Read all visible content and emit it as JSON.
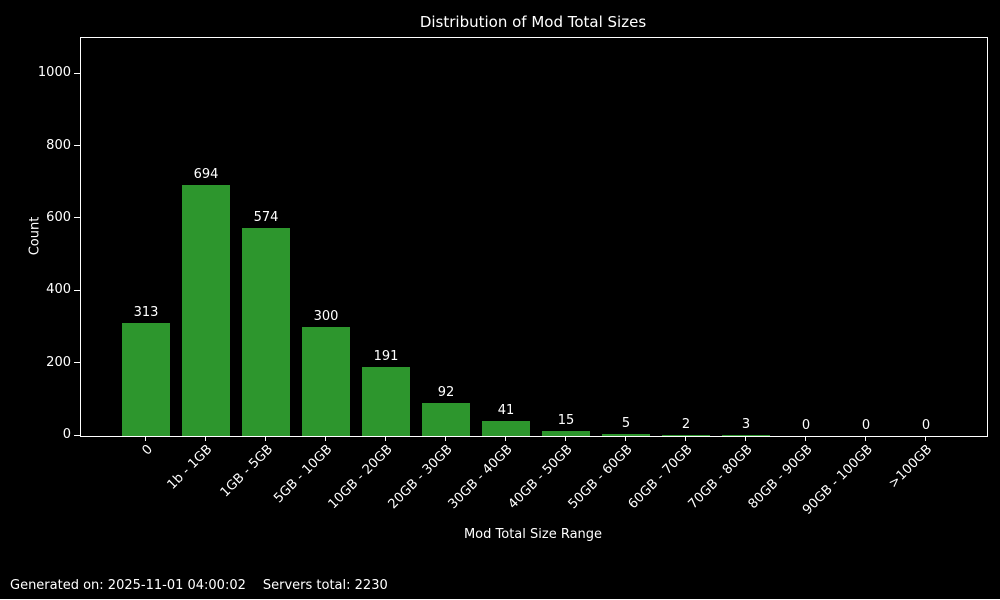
{
  "chart_data": {
    "type": "bar",
    "title": "Distribution of Mod Total Sizes",
    "xlabel": "Mod Total Size Range",
    "ylabel": "Count",
    "categories": [
      "0",
      "1b - 1GB",
      "1GB - 5GB",
      "5GB - 10GB",
      "10GB - 20GB",
      "20GB - 30GB",
      "30GB - 40GB",
      "40GB - 50GB",
      "50GB - 60GB",
      "60GB - 70GB",
      "70GB - 80GB",
      "80GB - 90GB",
      "90GB - 100GB",
      ">100GB"
    ],
    "values": [
      313,
      694,
      574,
      300,
      191,
      92,
      41,
      15,
      5,
      2,
      3,
      0,
      0,
      0
    ],
    "ylim": [
      0,
      1100
    ],
    "yticks": [
      0,
      200,
      400,
      600,
      800,
      1000
    ],
    "grid": false,
    "legend": null,
    "bar_color": "#2d962d",
    "background_color": "#000000",
    "text_color": "#ffffff"
  },
  "footer": {
    "generated_text": "Generated on: 2025-11-01 04:00:02",
    "servers_text": "Servers total: 2230"
  }
}
